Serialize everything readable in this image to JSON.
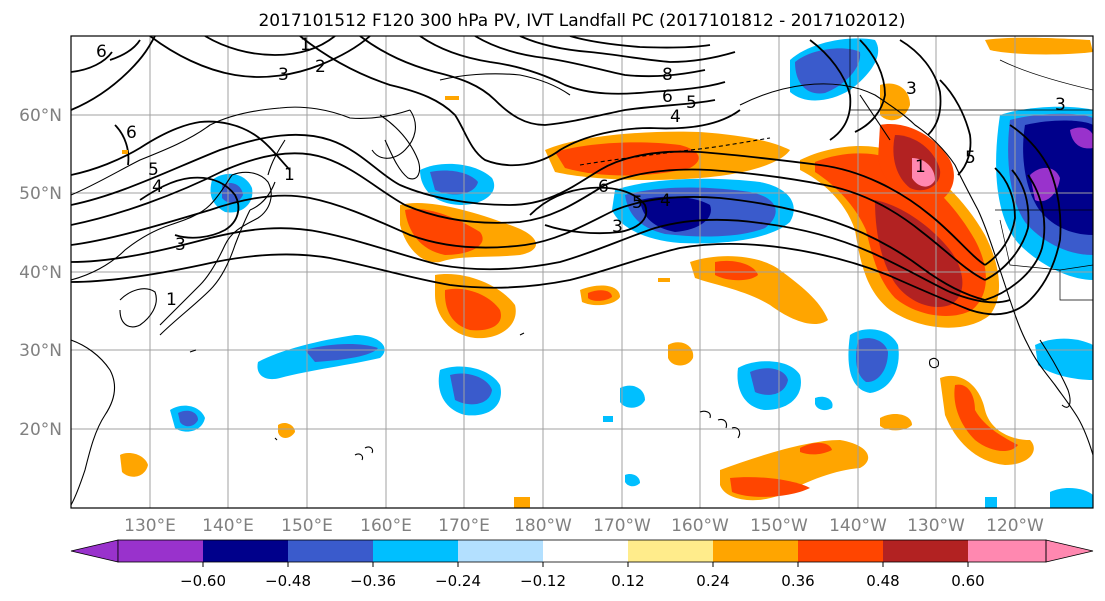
{
  "title": "2017101512 F120 300 hPa PV, IVT Landfall PC (2017101812 - 2017102012)",
  "lat_labels": [
    "60°N",
    "50°N",
    "40°N",
    "30°N",
    "20°N"
  ],
  "lon_labels": [
    "130°E",
    "140°E",
    "150°E",
    "160°E",
    "170°E",
    "180°W",
    "170°W",
    "160°W",
    "150°W",
    "140°W",
    "130°W",
    "120°W"
  ],
  "contour_labels": [
    "6",
    "1",
    "3",
    "2",
    "6",
    "5",
    "4",
    "1",
    "3",
    "6",
    "5",
    "4",
    "3",
    "8",
    "6",
    "5",
    "4",
    "3",
    "1",
    "5",
    "3",
    "1"
  ],
  "colorbar": {
    "colors": [
      "#9932cc",
      "#00008b",
      "#3a5bcc",
      "#00bfff",
      "#b3e0ff",
      "#ffffff",
      "#ffec8b",
      "#ffa500",
      "#ff4500",
      "#b22222",
      "#ff88b0"
    ],
    "tick_labels": [
      "−0.60",
      "−0.48",
      "−0.36",
      "−0.24",
      "−0.12",
      "0.12",
      "0.24",
      "0.36",
      "0.48",
      "0.60"
    ]
  },
  "palette": {
    "grid": "#a0a0a0",
    "axis_label": "#808080",
    "contour": "#000000"
  }
}
